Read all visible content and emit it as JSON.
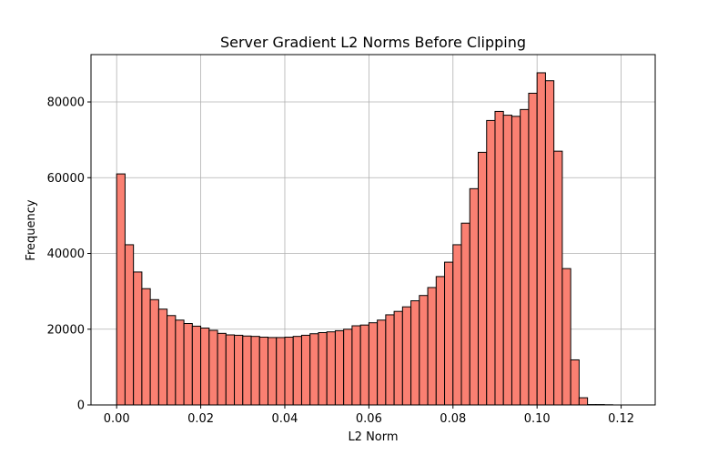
{
  "chart_data": {
    "type": "bar",
    "title": "Server Gradient L2 Norms Before Clipping",
    "xlabel": "L2 Norm",
    "ylabel": "Frequency",
    "xlim": [
      -0.0061,
      0.1281
    ],
    "ylim": [
      0,
      92500
    ],
    "xticks": [
      0.0,
      0.02,
      0.04,
      0.06,
      0.08,
      0.1,
      0.12
    ],
    "xtick_labels": [
      "0.00",
      "0.02",
      "0.04",
      "0.06",
      "0.08",
      "0.10",
      "0.12"
    ],
    "yticks": [
      0,
      20000,
      40000,
      60000,
      80000
    ],
    "ytick_labels": [
      "0",
      "20000",
      "40000",
      "60000",
      "80000"
    ],
    "grid": true,
    "bin_start": 0.0,
    "bin_width": 0.002,
    "values": [
      61000,
      42300,
      35100,
      30700,
      27800,
      25300,
      23600,
      22400,
      21500,
      20800,
      20300,
      19700,
      18900,
      18500,
      18400,
      18200,
      18100,
      17900,
      17800,
      17800,
      17900,
      18100,
      18400,
      18800,
      19100,
      19300,
      19600,
      20000,
      20900,
      21100,
      21700,
      22400,
      23800,
      24700,
      25900,
      27500,
      28900,
      31000,
      33900,
      37700,
      42300,
      48000,
      57100,
      66700,
      75100,
      77500,
      76500,
      76200,
      78000,
      82300,
      87700,
      85600,
      67000,
      36000,
      11900,
      1900,
      100,
      100,
      50,
      0,
      0,
      0
    ]
  },
  "colors": {
    "bar_fill": "#fa8072",
    "bar_edge": "#000000",
    "grid": "#b0b0b0",
    "axis": "#000000"
  }
}
